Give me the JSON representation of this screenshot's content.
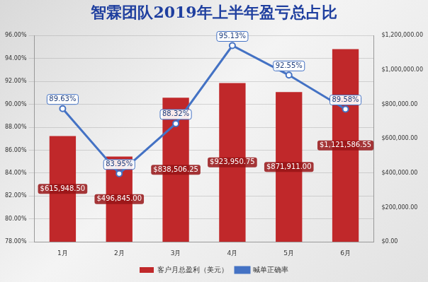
{
  "chart_data": {
    "type": "bar",
    "title": "智霖团队2019年上半年盈亏总占比",
    "categories": [
      "1月",
      "2月",
      "3月",
      "4月",
      "5月",
      "6月"
    ],
    "series": [
      {
        "name": "客户月总盈利（美元）",
        "type": "bar",
        "color": "#c0282a",
        "axis": "y2",
        "values": [
          615948.5,
          496845.0,
          838506.25,
          923950.75,
          871911.0,
          1121586.55
        ],
        "value_labels": [
          "$615,948.50",
          "$496,845.00",
          "$838,506.25",
          "$923,950.75",
          "$871,911.00",
          "$1,121,586.55"
        ]
      },
      {
        "name": "喊单正确率",
        "type": "line",
        "color": "#4472c4",
        "marker": "circle",
        "values": [
          89.63,
          83.95,
          88.32,
          95.13,
          92.55,
          89.58
        ],
        "value_labels": [
          "89.63%",
          "83.95%",
          "88.32%",
          "95.13%",
          "92.55%",
          "89.58%"
        ]
      }
    ],
    "ylim": [
      78,
      96
    ],
    "yticks": [
      {
        "value": 78,
        "label": "78.00%"
      },
      {
        "value": 80,
        "label": "80.00%"
      },
      {
        "value": 82,
        "label": "82.00%"
      },
      {
        "value": 84,
        "label": "84.00%"
      },
      {
        "value": 86,
        "label": "86.00%"
      },
      {
        "value": 88,
        "label": "88.00%"
      },
      {
        "value": 90,
        "label": "90.00%"
      },
      {
        "value": 92,
        "label": "92.00%"
      },
      {
        "value": 94,
        "label": "94.00%"
      },
      {
        "value": 96,
        "label": "96.00%"
      }
    ],
    "y2lim": [
      0,
      1200000
    ],
    "y2ticks": [
      {
        "value": 0,
        "label": "$0.00"
      },
      {
        "value": 200000,
        "label": "$200,000.00"
      },
      {
        "value": 400000,
        "label": "$400,000.00"
      },
      {
        "value": 600000,
        "label": "$600,000.00"
      },
      {
        "value": 800000,
        "label": "$800,000.00"
      },
      {
        "value": 1000000,
        "label": "$1,000,000.00"
      },
      {
        "value": 1200000,
        "label": "$1,200,000.00"
      }
    ],
    "grid": true,
    "legend": "bottom",
    "data_labels": true
  }
}
